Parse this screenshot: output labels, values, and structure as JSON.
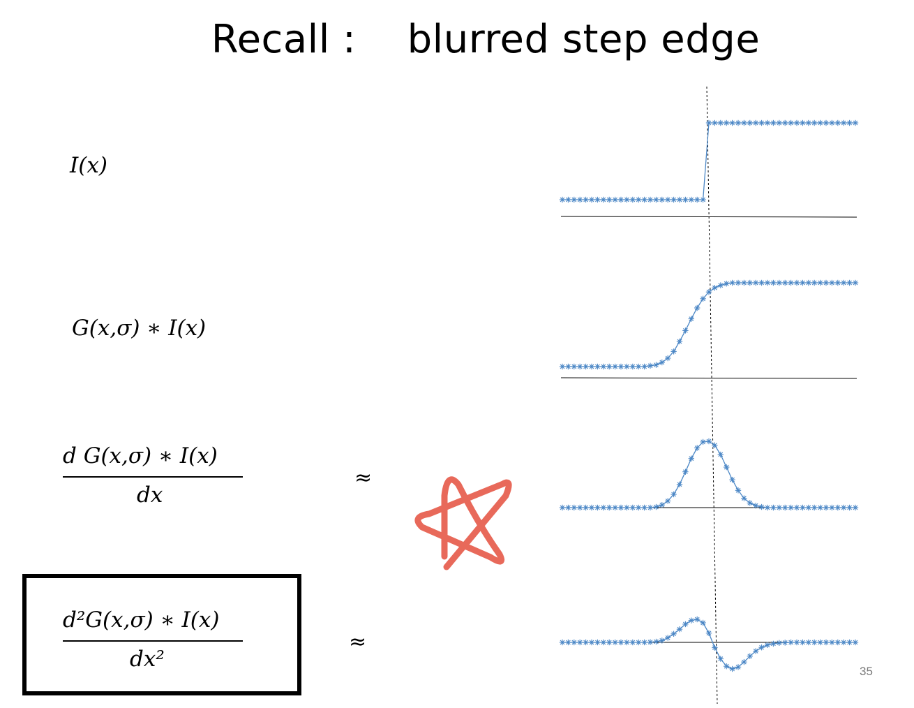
{
  "slide": {
    "title": "Recall :    blurred step edge",
    "page_number": "35"
  },
  "equations": {
    "row1": "I(x)",
    "row2": "G(x,σ) ∗ I(x)",
    "row3_numerator": "d G(x,σ) ∗  I(x)",
    "row3_denominator": "dx",
    "row4_numerator": "d²G(x,σ) ∗ I(x)",
    "row4_denominator": "dx²",
    "approx_symbol": "≈"
  },
  "colors": {
    "marker": "#4a86c5",
    "axis": "#000000",
    "star": "#e8695a"
  },
  "icons": {
    "star": "hand-drawn-star-icon"
  },
  "chart_data": [
    {
      "type": "line",
      "title": "",
      "marker": "asterisk",
      "x": [
        0,
        1,
        2,
        3,
        4,
        5,
        6,
        7,
        8,
        9,
        10,
        11,
        12,
        13,
        14,
        15,
        16,
        17,
        18,
        19,
        20,
        21,
        22,
        23,
        24,
        25,
        26,
        27,
        28,
        29,
        30,
        31,
        32,
        33,
        34,
        35,
        36,
        37,
        38,
        39,
        40,
        41,
        42,
        43,
        44,
        45,
        46,
        47,
        48,
        49,
        50
      ],
      "y": [
        0,
        0,
        0,
        0,
        0,
        0,
        0,
        0,
        0,
        0,
        0,
        0,
        0,
        0,
        0,
        0,
        0,
        0,
        0,
        0,
        0,
        0,
        0,
        0,
        0,
        1,
        1,
        1,
        1,
        1,
        1,
        1,
        1,
        1,
        1,
        1,
        1,
        1,
        1,
        1,
        1,
        1,
        1,
        1,
        1,
        1,
        1,
        1,
        1,
        1,
        1
      ]
    },
    {
      "type": "line",
      "title": "",
      "marker": "asterisk",
      "x": [
        0,
        1,
        2,
        3,
        4,
        5,
        6,
        7,
        8,
        9,
        10,
        11,
        12,
        13,
        14,
        15,
        16,
        17,
        18,
        19,
        20,
        21,
        22,
        23,
        24,
        25,
        26,
        27,
        28,
        29,
        30,
        31,
        32,
        33,
        34,
        35,
        36,
        37,
        38,
        39,
        40,
        41,
        42,
        43,
        44,
        45,
        46,
        47,
        48,
        49,
        50
      ],
      "y": [
        0,
        0,
        0,
        0,
        0,
        0,
        0,
        0,
        0,
        0,
        0,
        0,
        0,
        0,
        0,
        0.01,
        0.02,
        0.05,
        0.1,
        0.18,
        0.3,
        0.43,
        0.57,
        0.7,
        0.81,
        0.89,
        0.94,
        0.97,
        0.99,
        1,
        1,
        1,
        1,
        1,
        1,
        1,
        1,
        1,
        1,
        1,
        1,
        1,
        1,
        1,
        1,
        1,
        1,
        1,
        1,
        1,
        1
      ]
    },
    {
      "type": "line",
      "title": "",
      "marker": "asterisk",
      "x": [
        0,
        1,
        2,
        3,
        4,
        5,
        6,
        7,
        8,
        9,
        10,
        11,
        12,
        13,
        14,
        15,
        16,
        17,
        18,
        19,
        20,
        21,
        22,
        23,
        24,
        25,
        26,
        27,
        28,
        29,
        30,
        31,
        32,
        33,
        34,
        35,
        36,
        37,
        38,
        39,
        40,
        41,
        42,
        43,
        44,
        45,
        46,
        47,
        48,
        49,
        50
      ],
      "y": [
        0,
        0,
        0,
        0,
        0,
        0,
        0,
        0,
        0,
        0,
        0,
        0,
        0,
        0,
        0,
        0,
        0.01,
        0.04,
        0.1,
        0.2,
        0.35,
        0.54,
        0.74,
        0.9,
        0.99,
        1,
        0.94,
        0.8,
        0.61,
        0.42,
        0.26,
        0.14,
        0.07,
        0.03,
        0.01,
        0,
        0,
        0,
        0,
        0,
        0,
        0,
        0,
        0,
        0,
        0,
        0,
        0,
        0,
        0,
        0
      ]
    },
    {
      "type": "line",
      "title": "",
      "marker": "asterisk",
      "x": [
        0,
        1,
        2,
        3,
        4,
        5,
        6,
        7,
        8,
        9,
        10,
        11,
        12,
        13,
        14,
        15,
        16,
        17,
        18,
        19,
        20,
        21,
        22,
        23,
        24,
        25,
        26,
        27,
        28,
        29,
        30,
        31,
        32,
        33,
        34,
        35,
        36,
        37,
        38,
        39,
        40,
        41,
        42,
        43,
        44,
        45,
        46,
        47,
        48,
        49,
        50
      ],
      "y": [
        0,
        0,
        0,
        0,
        0,
        0,
        0,
        0,
        0,
        0,
        0,
        0,
        0,
        0,
        0,
        0.01,
        0.03,
        0.08,
        0.2,
        0.37,
        0.57,
        0.79,
        0.95,
        1,
        0.85,
        0.4,
        -0.2,
        -0.62,
        -0.9,
        -1,
        -0.93,
        -0.74,
        -0.52,
        -0.33,
        -0.19,
        -0.1,
        -0.05,
        -0.02,
        -0.01,
        0,
        0,
        0,
        0,
        0,
        0,
        0,
        0,
        0,
        0,
        0,
        0
      ]
    }
  ]
}
